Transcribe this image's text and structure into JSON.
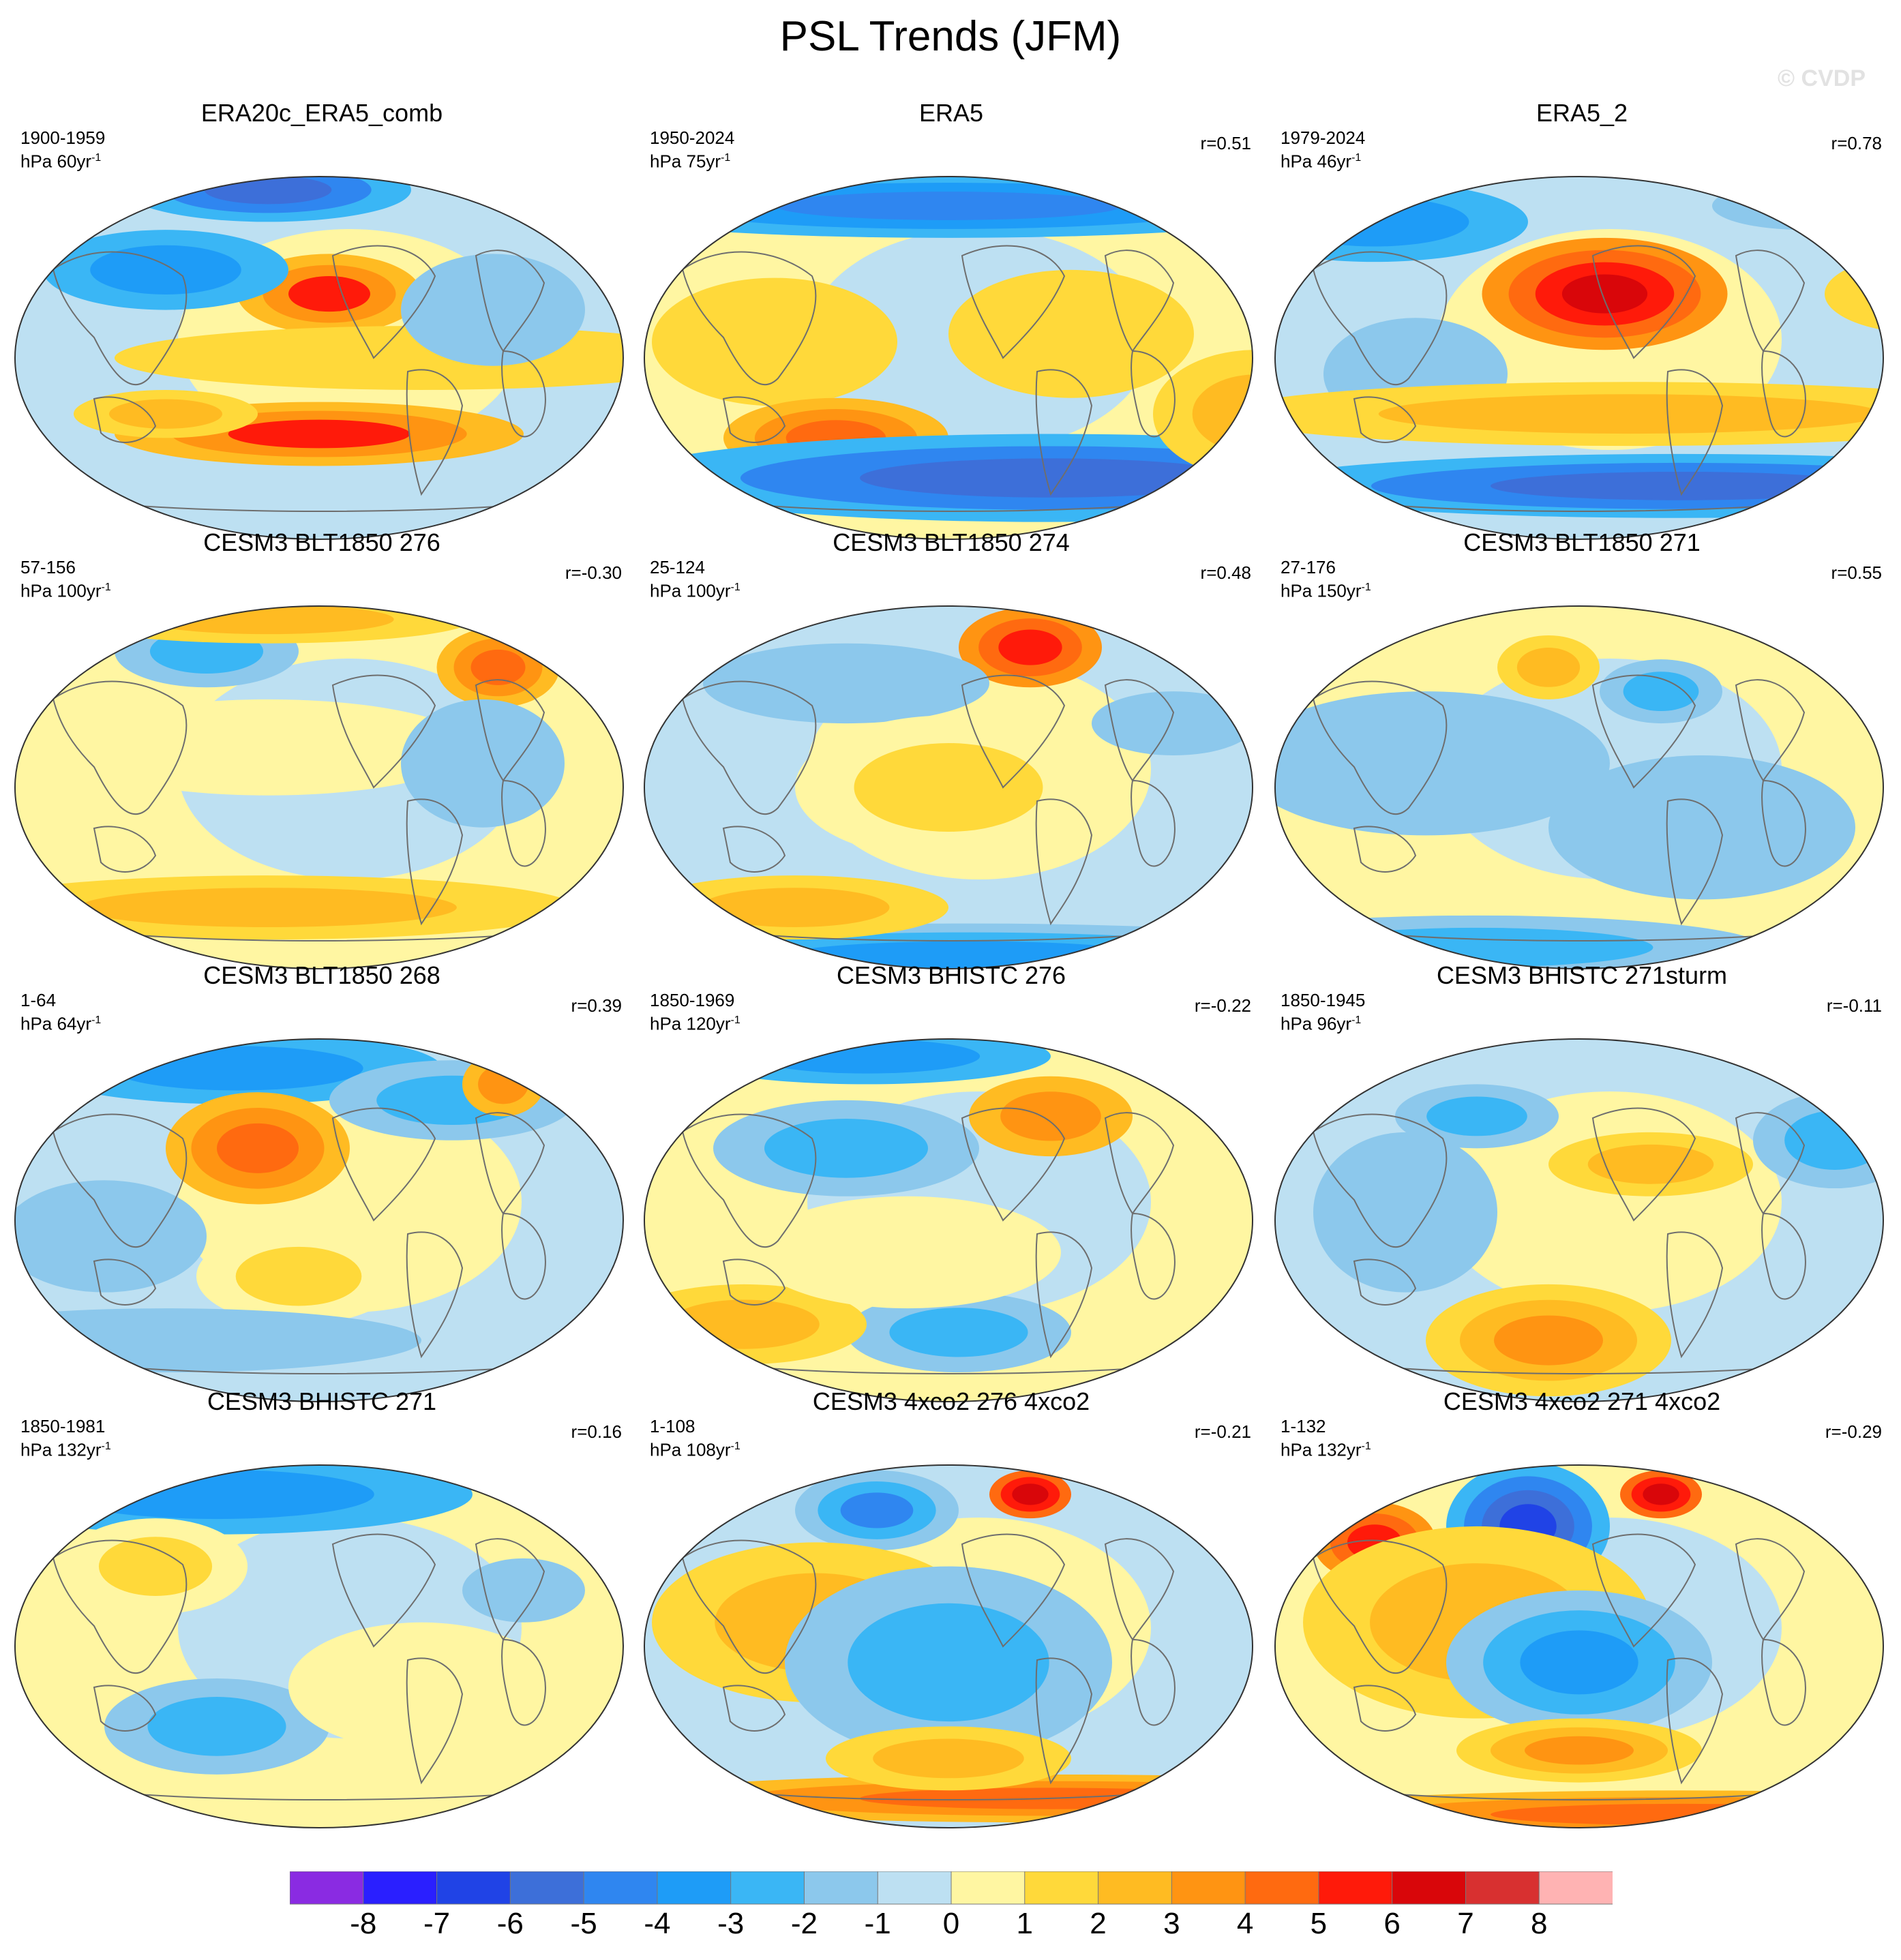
{
  "title": "PSL Trends (JFM)",
  "watermark": "© CVDP",
  "panels": [
    {
      "title": "ERA20c_ERA5_comb",
      "period": "1900-1959",
      "units_base": "hPa 60yr",
      "units_exp": "-1",
      "r": ""
    },
    {
      "title": "ERA5",
      "period": "1950-2024",
      "units_base": "hPa 75yr",
      "units_exp": "-1",
      "r": "r=0.51"
    },
    {
      "title": "ERA5_2",
      "period": "1979-2024",
      "units_base": "hPa 46yr",
      "units_exp": "-1",
      "r": "r=0.78"
    },
    {
      "title": "CESM3 BLT1850 276",
      "period": "57-156",
      "units_base": "hPa 100yr",
      "units_exp": "-1",
      "r": "r=-0.30"
    },
    {
      "title": "CESM3 BLT1850 274",
      "period": "25-124",
      "units_base": "hPa 100yr",
      "units_exp": "-1",
      "r": "r=0.48"
    },
    {
      "title": "CESM3 BLT1850 271",
      "period": "27-176",
      "units_base": "hPa 150yr",
      "units_exp": "-1",
      "r": "r=0.55"
    },
    {
      "title": "CESM3 BLT1850 268",
      "period": "1-64",
      "units_base": "hPa 64yr",
      "units_exp": "-1",
      "r": "r=0.39"
    },
    {
      "title": "CESM3 BHISTC 276",
      "period": "1850-1969",
      "units_base": "hPa 120yr",
      "units_exp": "-1",
      "r": "r=-0.22"
    },
    {
      "title": "CESM3 BHISTC 271sturm",
      "period": "1850-1945",
      "units_base": "hPa 96yr",
      "units_exp": "-1",
      "r": "r=-0.11"
    },
    {
      "title": "CESM3 BHISTC 271",
      "period": "1850-1981",
      "units_base": "hPa 132yr",
      "units_exp": "-1",
      "r": "r=0.16"
    },
    {
      "title": "CESM3 4xco2 276 4xco2",
      "period": "1-108",
      "units_base": "hPa 108yr",
      "units_exp": "-1",
      "r": "r=-0.21"
    },
    {
      "title": "CESM3 4xco2 271 4xco2",
      "period": "1-132",
      "units_base": "hPa 132yr",
      "units_exp": "-1",
      "r": "r=-0.29"
    }
  ],
  "colorbar": {
    "labels": [
      "-8",
      "-7",
      "-6",
      "-5",
      "-4",
      "-3",
      "-2",
      "-1",
      "0",
      "1",
      "2",
      "3",
      "4",
      "5",
      "6",
      "7",
      "8"
    ],
    "colors": [
      "#8a2be2",
      "#2a1fff",
      "#2043e6",
      "#3d6fd9",
      "#2f86f0",
      "#1e9cf7",
      "#3ab6f5",
      "#8cc8ec",
      "#bde0f2",
      "#fff6a2",
      "#ffd93a",
      "#ffbb22",
      "#ff9412",
      "#ff6a10",
      "#ff1a0a",
      "#d9060a",
      "#d83030",
      "#ffb3b3"
    ]
  },
  "palette": {
    "ocean_base_cool": "#bde0f2",
    "ocean_base_warm": "#fff6a2",
    "coast": "#6e6e6e"
  }
}
